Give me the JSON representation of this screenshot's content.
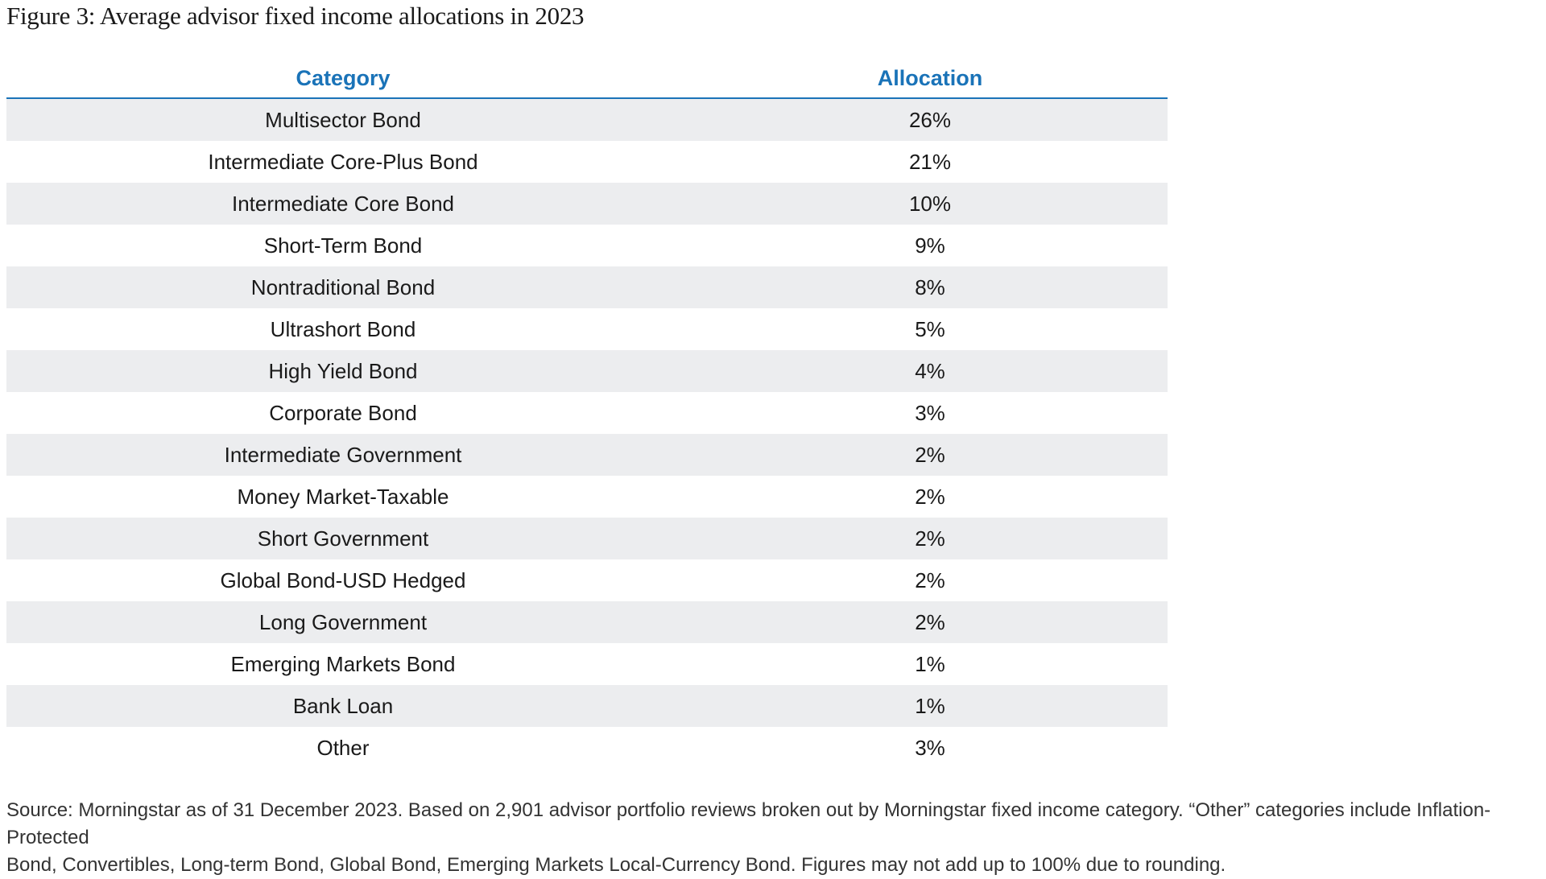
{
  "title": "Figure 3: Average advisor fixed income allocations in 2023",
  "chart_data": {
    "type": "table",
    "columns": [
      "Category",
      "Allocation"
    ],
    "rows": [
      {
        "category": "Multisector Bond",
        "allocation": "26%"
      },
      {
        "category": "Intermediate Core-Plus Bond",
        "allocation": "21%"
      },
      {
        "category": "Intermediate Core Bond",
        "allocation": "10%"
      },
      {
        "category": "Short-Term Bond",
        "allocation": "9%"
      },
      {
        "category": "Nontraditional Bond",
        "allocation": "8%"
      },
      {
        "category": "Ultrashort Bond",
        "allocation": "5%"
      },
      {
        "category": "High Yield Bond",
        "allocation": "4%"
      },
      {
        "category": "Corporate Bond",
        "allocation": "3%"
      },
      {
        "category": "Intermediate Government",
        "allocation": "2%"
      },
      {
        "category": "Money Market-Taxable",
        "allocation": "2%"
      },
      {
        "category": "Short Government",
        "allocation": "2%"
      },
      {
        "category": "Global Bond-USD Hedged",
        "allocation": "2%"
      },
      {
        "category": "Long Government",
        "allocation": "2%"
      },
      {
        "category": "Emerging Markets Bond",
        "allocation": "1%"
      },
      {
        "category": "Bank Loan",
        "allocation": "1%"
      },
      {
        "category": "Other",
        "allocation": "3%"
      }
    ]
  },
  "footnote": {
    "line1": "Source: Morningstar as of 31 December 2023. Based on 2,901 advisor portfolio reviews broken out by Morningstar fixed income category. “Other” categories include Inflation-Protected",
    "line2": "Bond, Convertibles, Long-term Bond, Global Bond, Emerging Markets Local-Currency Bond. Figures may not add up to 100% due to rounding."
  },
  "colors": {
    "header_text": "#1a73b8",
    "header_rule": "#1a73b8",
    "stripe": "#ecedef",
    "text": "#1a1a1a"
  }
}
